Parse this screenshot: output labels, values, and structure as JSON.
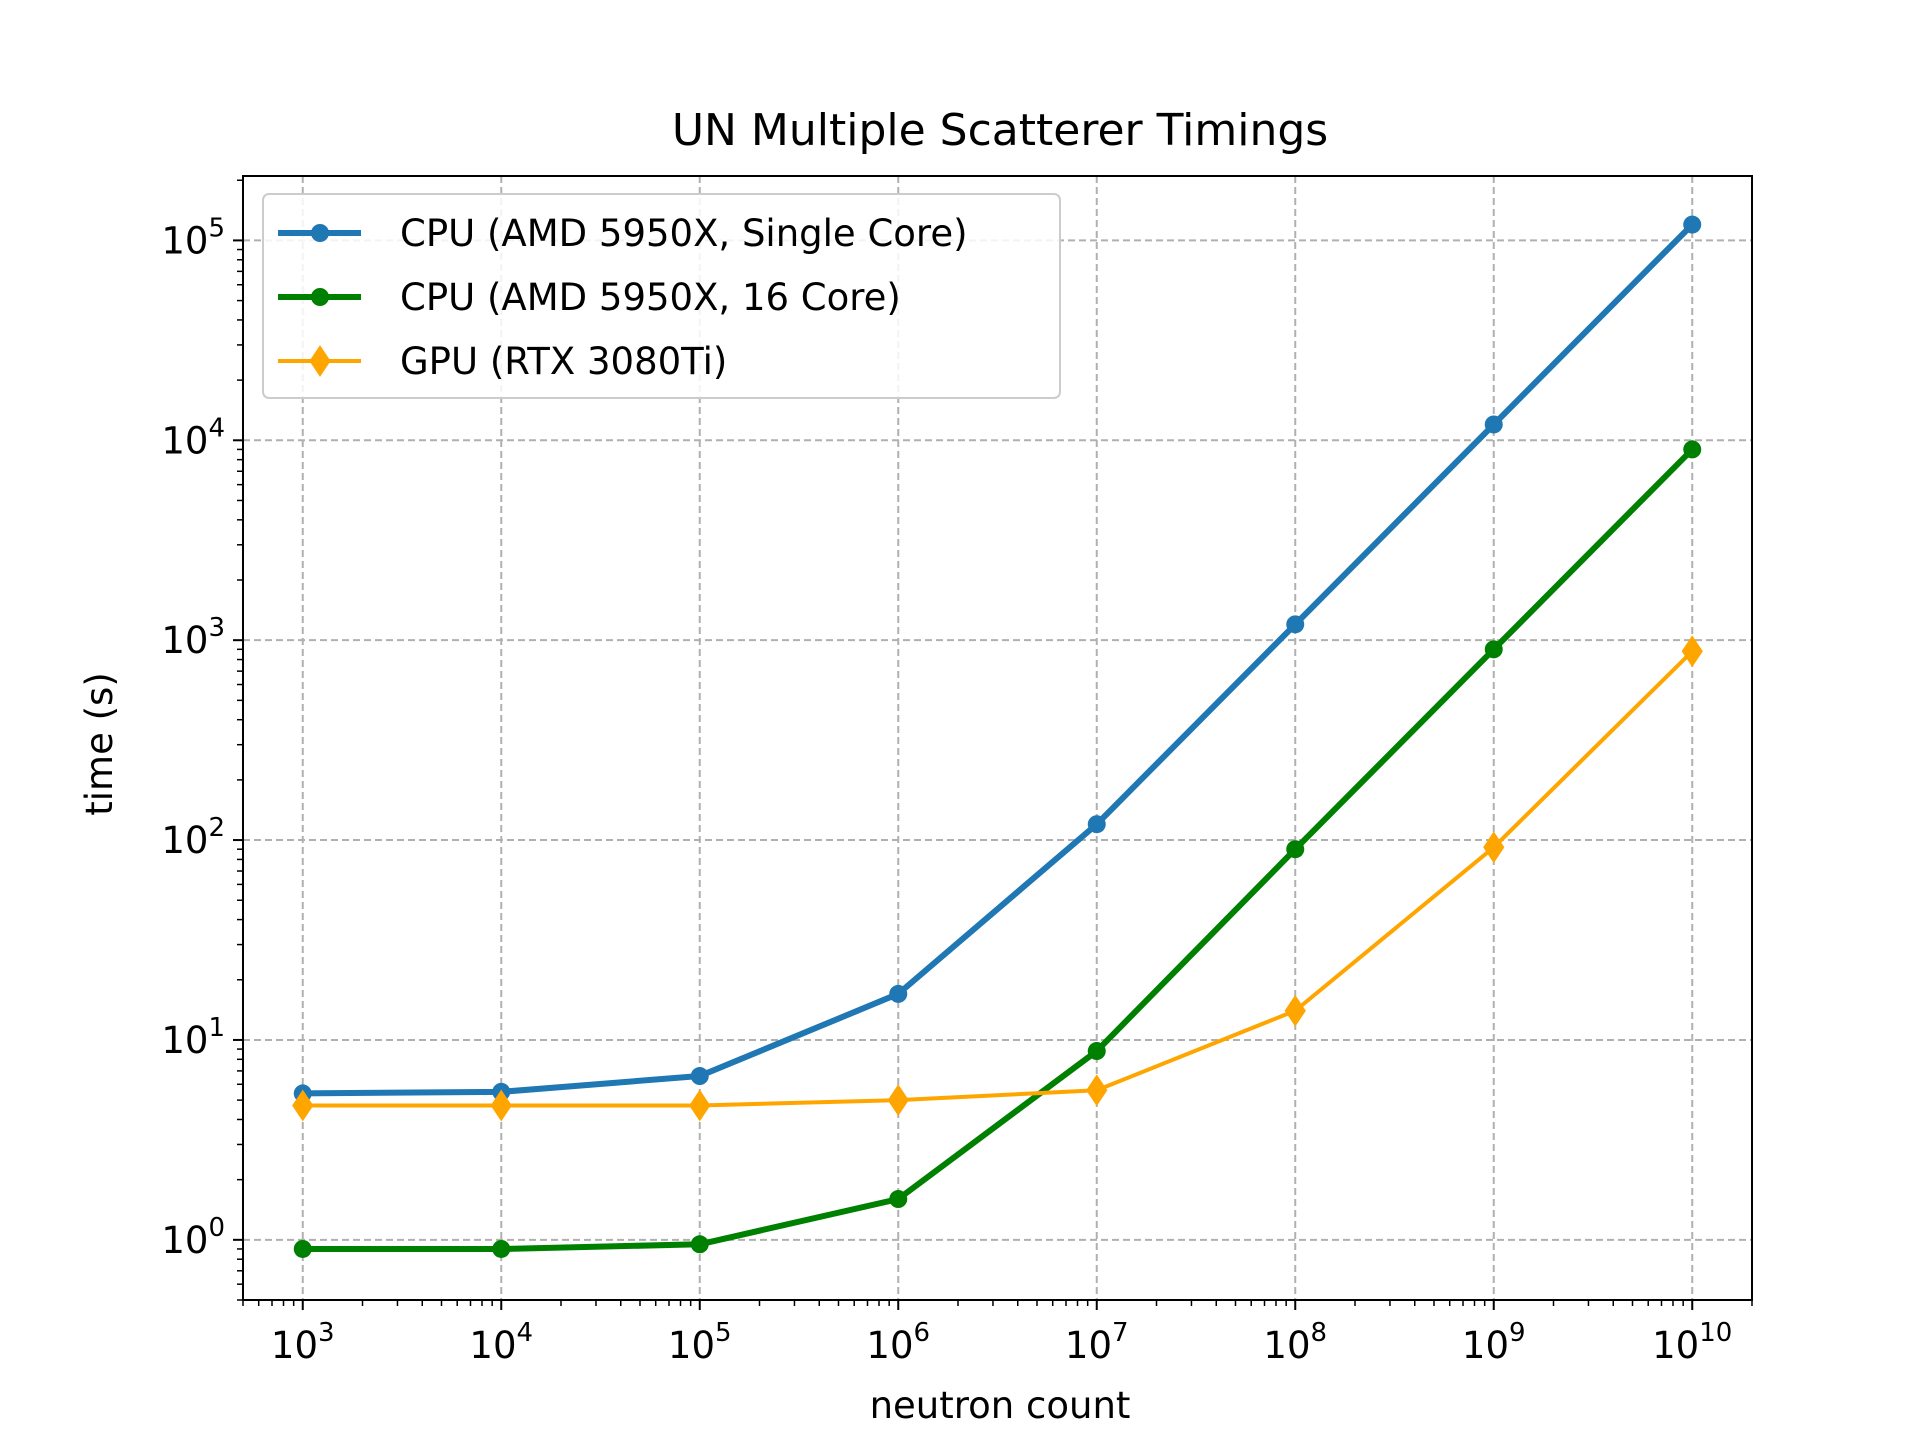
{
  "chart_data": {
    "type": "line",
    "title": "UN Multiple Scatterer Timings",
    "xlabel": "neutron count",
    "ylabel": "time (s)",
    "xscale": "log",
    "yscale": "log",
    "xlim": [
      500,
      20000000000
    ],
    "ylim": [
      0.5,
      210000
    ],
    "grid": true,
    "legend_position": "upper-left",
    "x_ticks": [
      {
        "base": "10",
        "exp": "3"
      },
      {
        "base": "10",
        "exp": "4"
      },
      {
        "base": "10",
        "exp": "5"
      },
      {
        "base": "10",
        "exp": "6"
      },
      {
        "base": "10",
        "exp": "7"
      },
      {
        "base": "10",
        "exp": "8"
      },
      {
        "base": "10",
        "exp": "9"
      },
      {
        "base": "10",
        "exp": "10"
      }
    ],
    "y_ticks": [
      {
        "base": "10",
        "exp": "0"
      },
      {
        "base": "10",
        "exp": "1"
      },
      {
        "base": "10",
        "exp": "2"
      },
      {
        "base": "10",
        "exp": "3"
      },
      {
        "base": "10",
        "exp": "4"
      },
      {
        "base": "10",
        "exp": "5"
      }
    ],
    "x": [
      1000,
      10000,
      100000,
      1000000,
      10000000,
      100000000,
      1000000000,
      10000000000
    ],
    "series": [
      {
        "name": "CPU (AMD 5950X, Single Core)",
        "color": "#1f77b4",
        "marker": "circle",
        "values": [
          5.4,
          5.5,
          6.6,
          17,
          120,
          1200,
          12000,
          120000
        ]
      },
      {
        "name": "CPU (AMD 5950X, 16 Core)",
        "color": "#008000",
        "marker": "circle",
        "values": [
          0.9,
          0.9,
          0.95,
          1.6,
          8.8,
          90,
          900,
          9000
        ]
      },
      {
        "name": "GPU (RTX 3080Ti)",
        "color": "#ffa500",
        "marker": "diamond",
        "values": [
          4.7,
          4.7,
          4.7,
          5.0,
          5.6,
          14,
          92,
          880
        ]
      }
    ]
  }
}
